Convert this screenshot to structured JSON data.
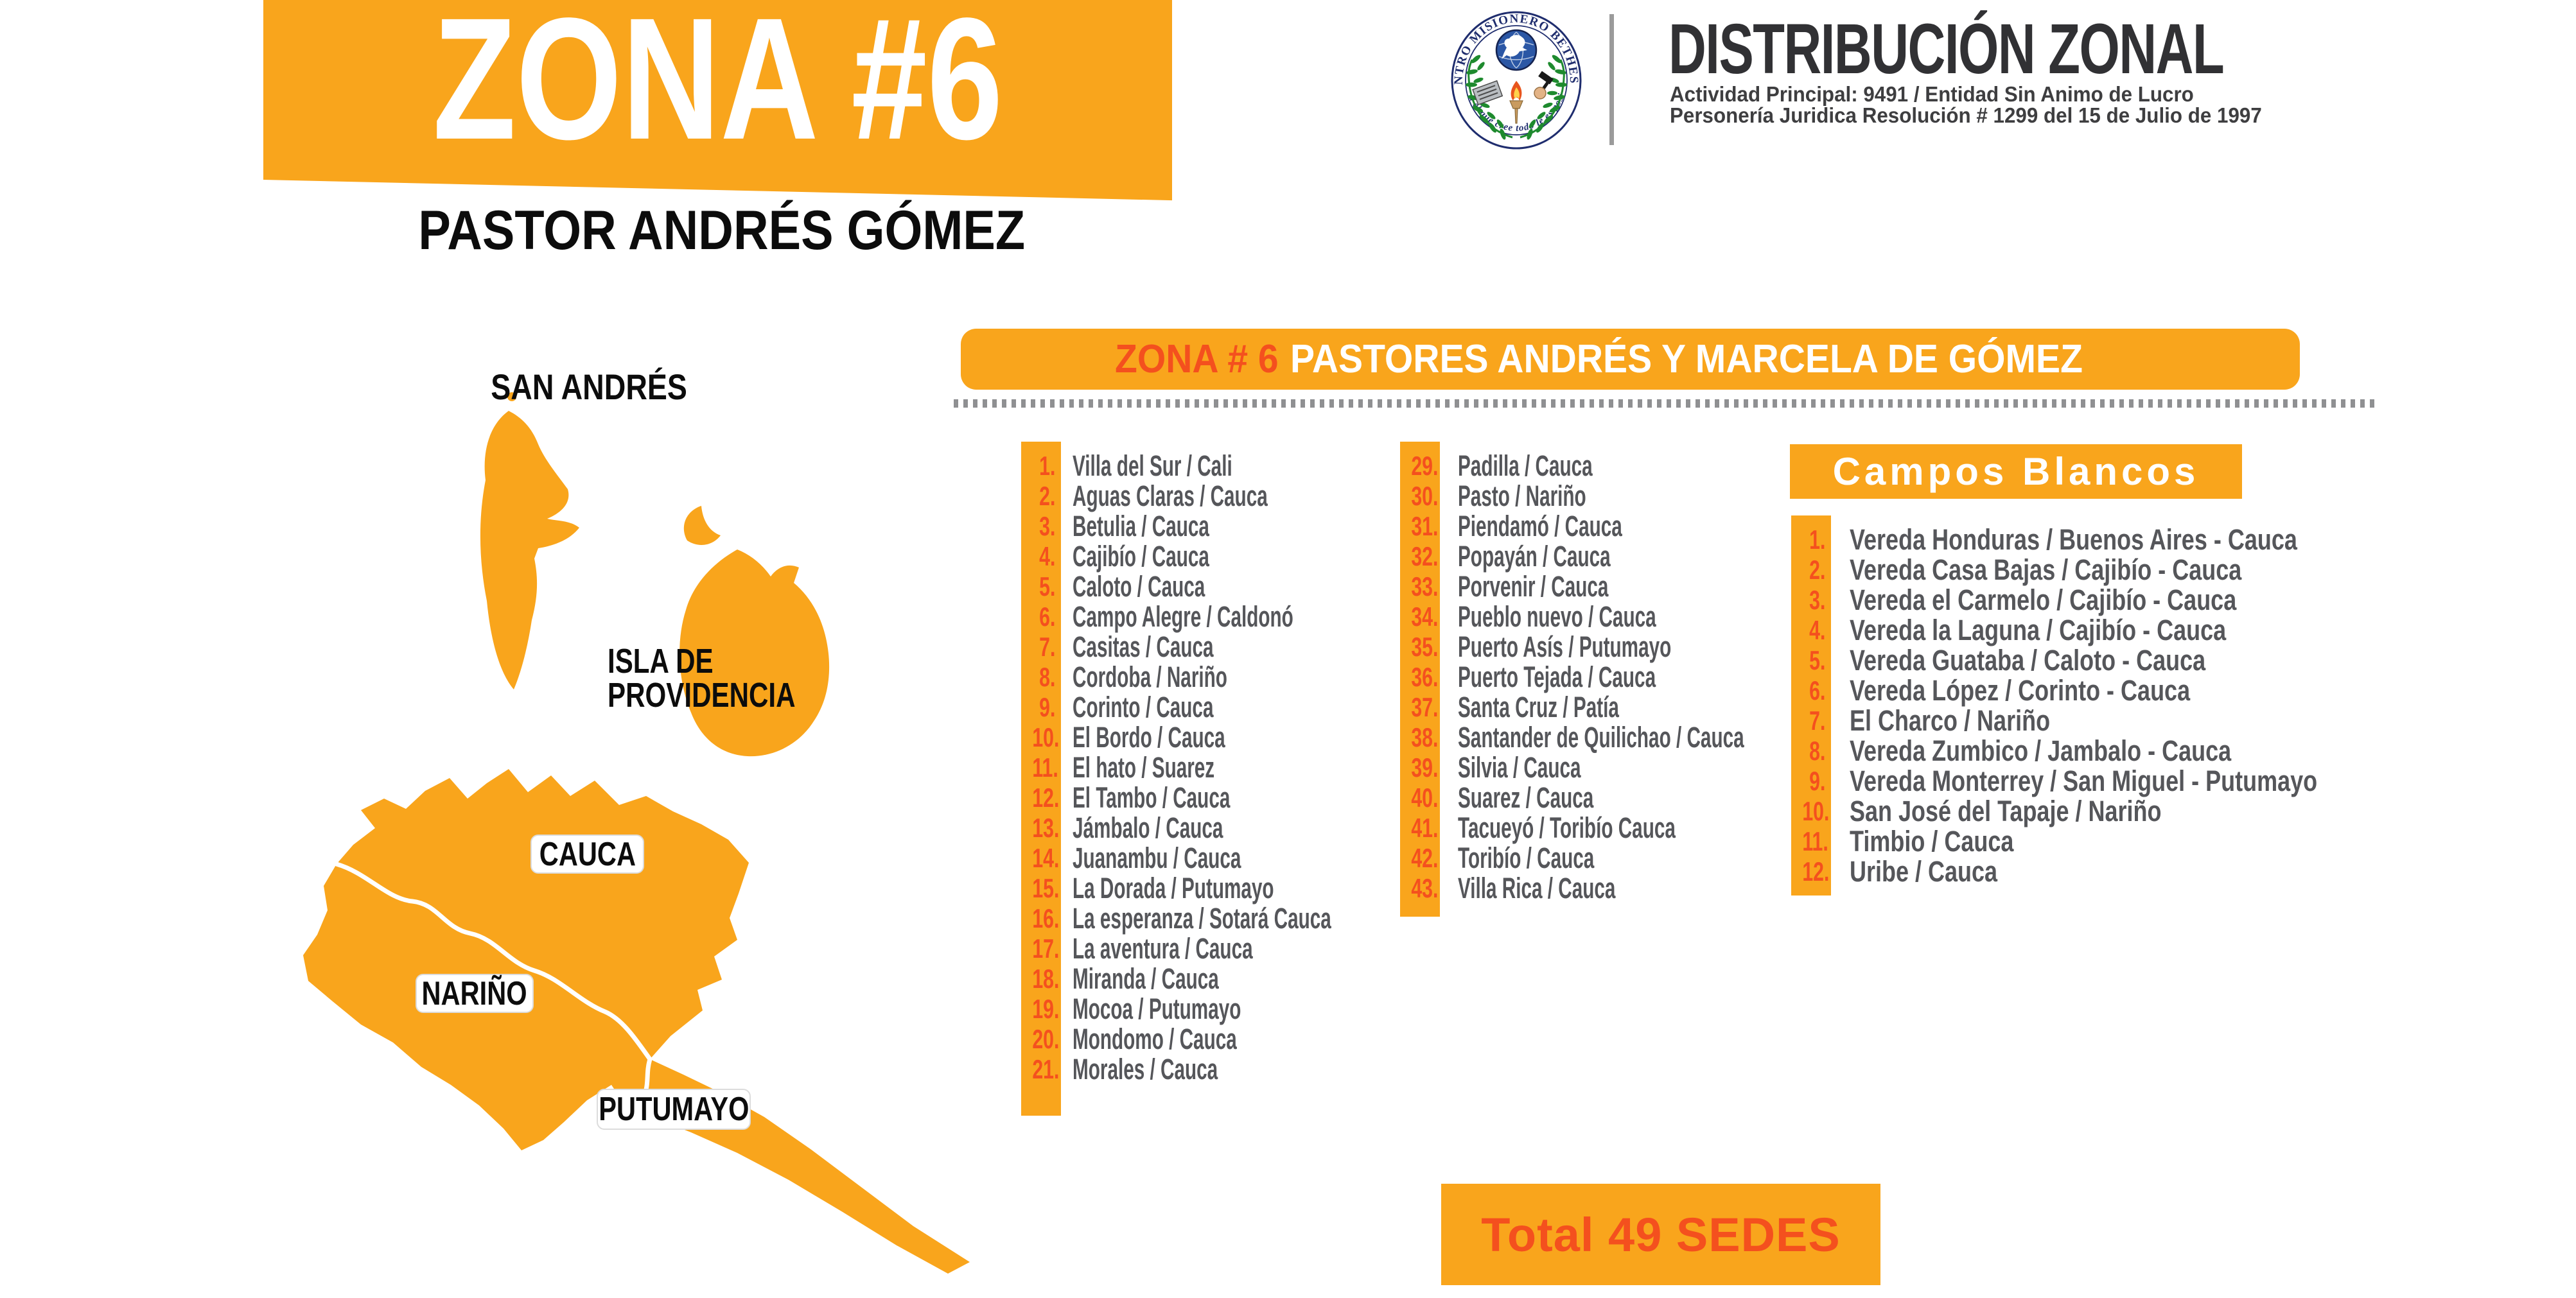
{
  "colors": {
    "orange": "#F9A51C",
    "red": "#F4501E",
    "gray_text": "#55565A",
    "title_dark": "#313134",
    "navy": "#1F2D6E",
    "laurel_green": "#1E8A2E",
    "flame_orange": "#E8551D"
  },
  "header": {
    "zona_banner": "ZONA #6",
    "pastor": "PASTOR ANDRÉS GÓMEZ",
    "org_title": "DISTRIBUCIÓN ZONAL",
    "org_line1": "Actividad Principal: 9491  / Entidad Sin Animo de Lucro",
    "org_line2": "Personería Juridica Resolución # 1299 del 15 de Julio de 1997",
    "logo": {
      "arc_top": "CENTRO MISIONERO BETHESDA",
      "arc_bottom": "Para el que cree todo le es posible"
    }
  },
  "zone_title": {
    "prefix": "ZONA # 6",
    "names": "PASTORES ANDRÉS Y MARCELA DE GÓMEZ"
  },
  "map": {
    "san_andres": "SAN ANDRÉS",
    "providencia_line1": "ISLA DE",
    "providencia_line2": "PROVIDENCIA",
    "regions": [
      "CAUCA",
      "NARIÑO",
      "PUTUMAYO"
    ]
  },
  "sedes": {
    "col1": [
      {
        "n": "1.",
        "t": "Villa del Sur / Cali"
      },
      {
        "n": "2.",
        "t": "Aguas Claras / Cauca"
      },
      {
        "n": "3.",
        "t": "Betulia / Cauca"
      },
      {
        "n": "4.",
        "t": "Cajibío / Cauca"
      },
      {
        "n": "5.",
        "t": "Caloto / Cauca"
      },
      {
        "n": "6.",
        "t": "Campo Alegre / Caldonó"
      },
      {
        "n": "7.",
        "t": "Casitas / Cauca"
      },
      {
        "n": "8.",
        "t": "Cordoba / Nariño"
      },
      {
        "n": "9.",
        "t": "Corinto / Cauca"
      },
      {
        "n": "10.",
        "t": "El Bordo / Cauca"
      },
      {
        "n": "11.",
        "t": "El hato / Suarez"
      },
      {
        "n": "12.",
        "t": "El Tambo / Cauca"
      },
      {
        "n": "13.",
        "t": "Jámbalo / Cauca"
      },
      {
        "n": "14.",
        "t": "Juanambu / Cauca"
      },
      {
        "n": "15.",
        "t": "La Dorada / Putumayo"
      },
      {
        "n": "16.",
        "t": "La esperanza / Sotará Cauca"
      },
      {
        "n": "17.",
        "t": "La aventura / Cauca"
      },
      {
        "n": "18.",
        "t": "Miranda / Cauca"
      },
      {
        "n": "19.",
        "t": "Mocoa / Putumayo"
      },
      {
        "n": "20.",
        "t": "Mondomo / Cauca"
      },
      {
        "n": "21.",
        "t": "Morales / Cauca"
      }
    ],
    "col2": [
      {
        "n": "29.",
        "t": "Padilla / Cauca"
      },
      {
        "n": "30.",
        "t": "Pasto / Nariño"
      },
      {
        "n": "31.",
        "t": "Piendamó / Cauca"
      },
      {
        "n": "32.",
        "t": "Popayán / Cauca"
      },
      {
        "n": "33.",
        "t": "Porvenir / Cauca"
      },
      {
        "n": "34.",
        "t": "Pueblo nuevo / Cauca"
      },
      {
        "n": "35.",
        "t": "Puerto Asís / Putumayo"
      },
      {
        "n": "36.",
        "t": "Puerto Tejada / Cauca"
      },
      {
        "n": "37.",
        "t": "Santa Cruz / Patía"
      },
      {
        "n": "38.",
        "t": "Santander de Quilichao / Cauca"
      },
      {
        "n": "39.",
        "t": "Silvia / Cauca"
      },
      {
        "n": "40.",
        "t": "Suarez / Cauca"
      },
      {
        "n": "41.",
        "t": "Tacueyó / Toribío Cauca"
      },
      {
        "n": "42.",
        "t": "Toribío / Cauca"
      },
      {
        "n": "43.",
        "t": "Villa Rica / Cauca"
      }
    ]
  },
  "campos_blancos": {
    "title": "Campos Blancos",
    "items": [
      {
        "n": "1.",
        "t": "Vereda Honduras / Buenos Aires - Cauca"
      },
      {
        "n": "2.",
        "t": "Vereda Casa Bajas / Cajibío - Cauca"
      },
      {
        "n": "3.",
        "t": "Vereda el Carmelo / Cajibío - Cauca"
      },
      {
        "n": "4.",
        "t": "Vereda la Laguna / Cajibío - Cauca"
      },
      {
        "n": "5.",
        "t": "Vereda Guataba / Caloto - Cauca"
      },
      {
        "n": "6.",
        "t": "Vereda López / Corinto - Cauca"
      },
      {
        "n": "7.",
        "t": "El Charco / Nariño"
      },
      {
        "n": "8.",
        "t": "Vereda Zumbico / Jambalo - Cauca"
      },
      {
        "n": "9.",
        "t": "Vereda Monterrey / San Miguel - Putumayo"
      },
      {
        "n": "10.",
        "t": "San José del Tapaje / Nariño"
      },
      {
        "n": "11.",
        "t": "Timbio / Cauca"
      },
      {
        "n": "12.",
        "t": "Uribe / Cauca"
      }
    ]
  },
  "total": "Total 49 SEDES"
}
